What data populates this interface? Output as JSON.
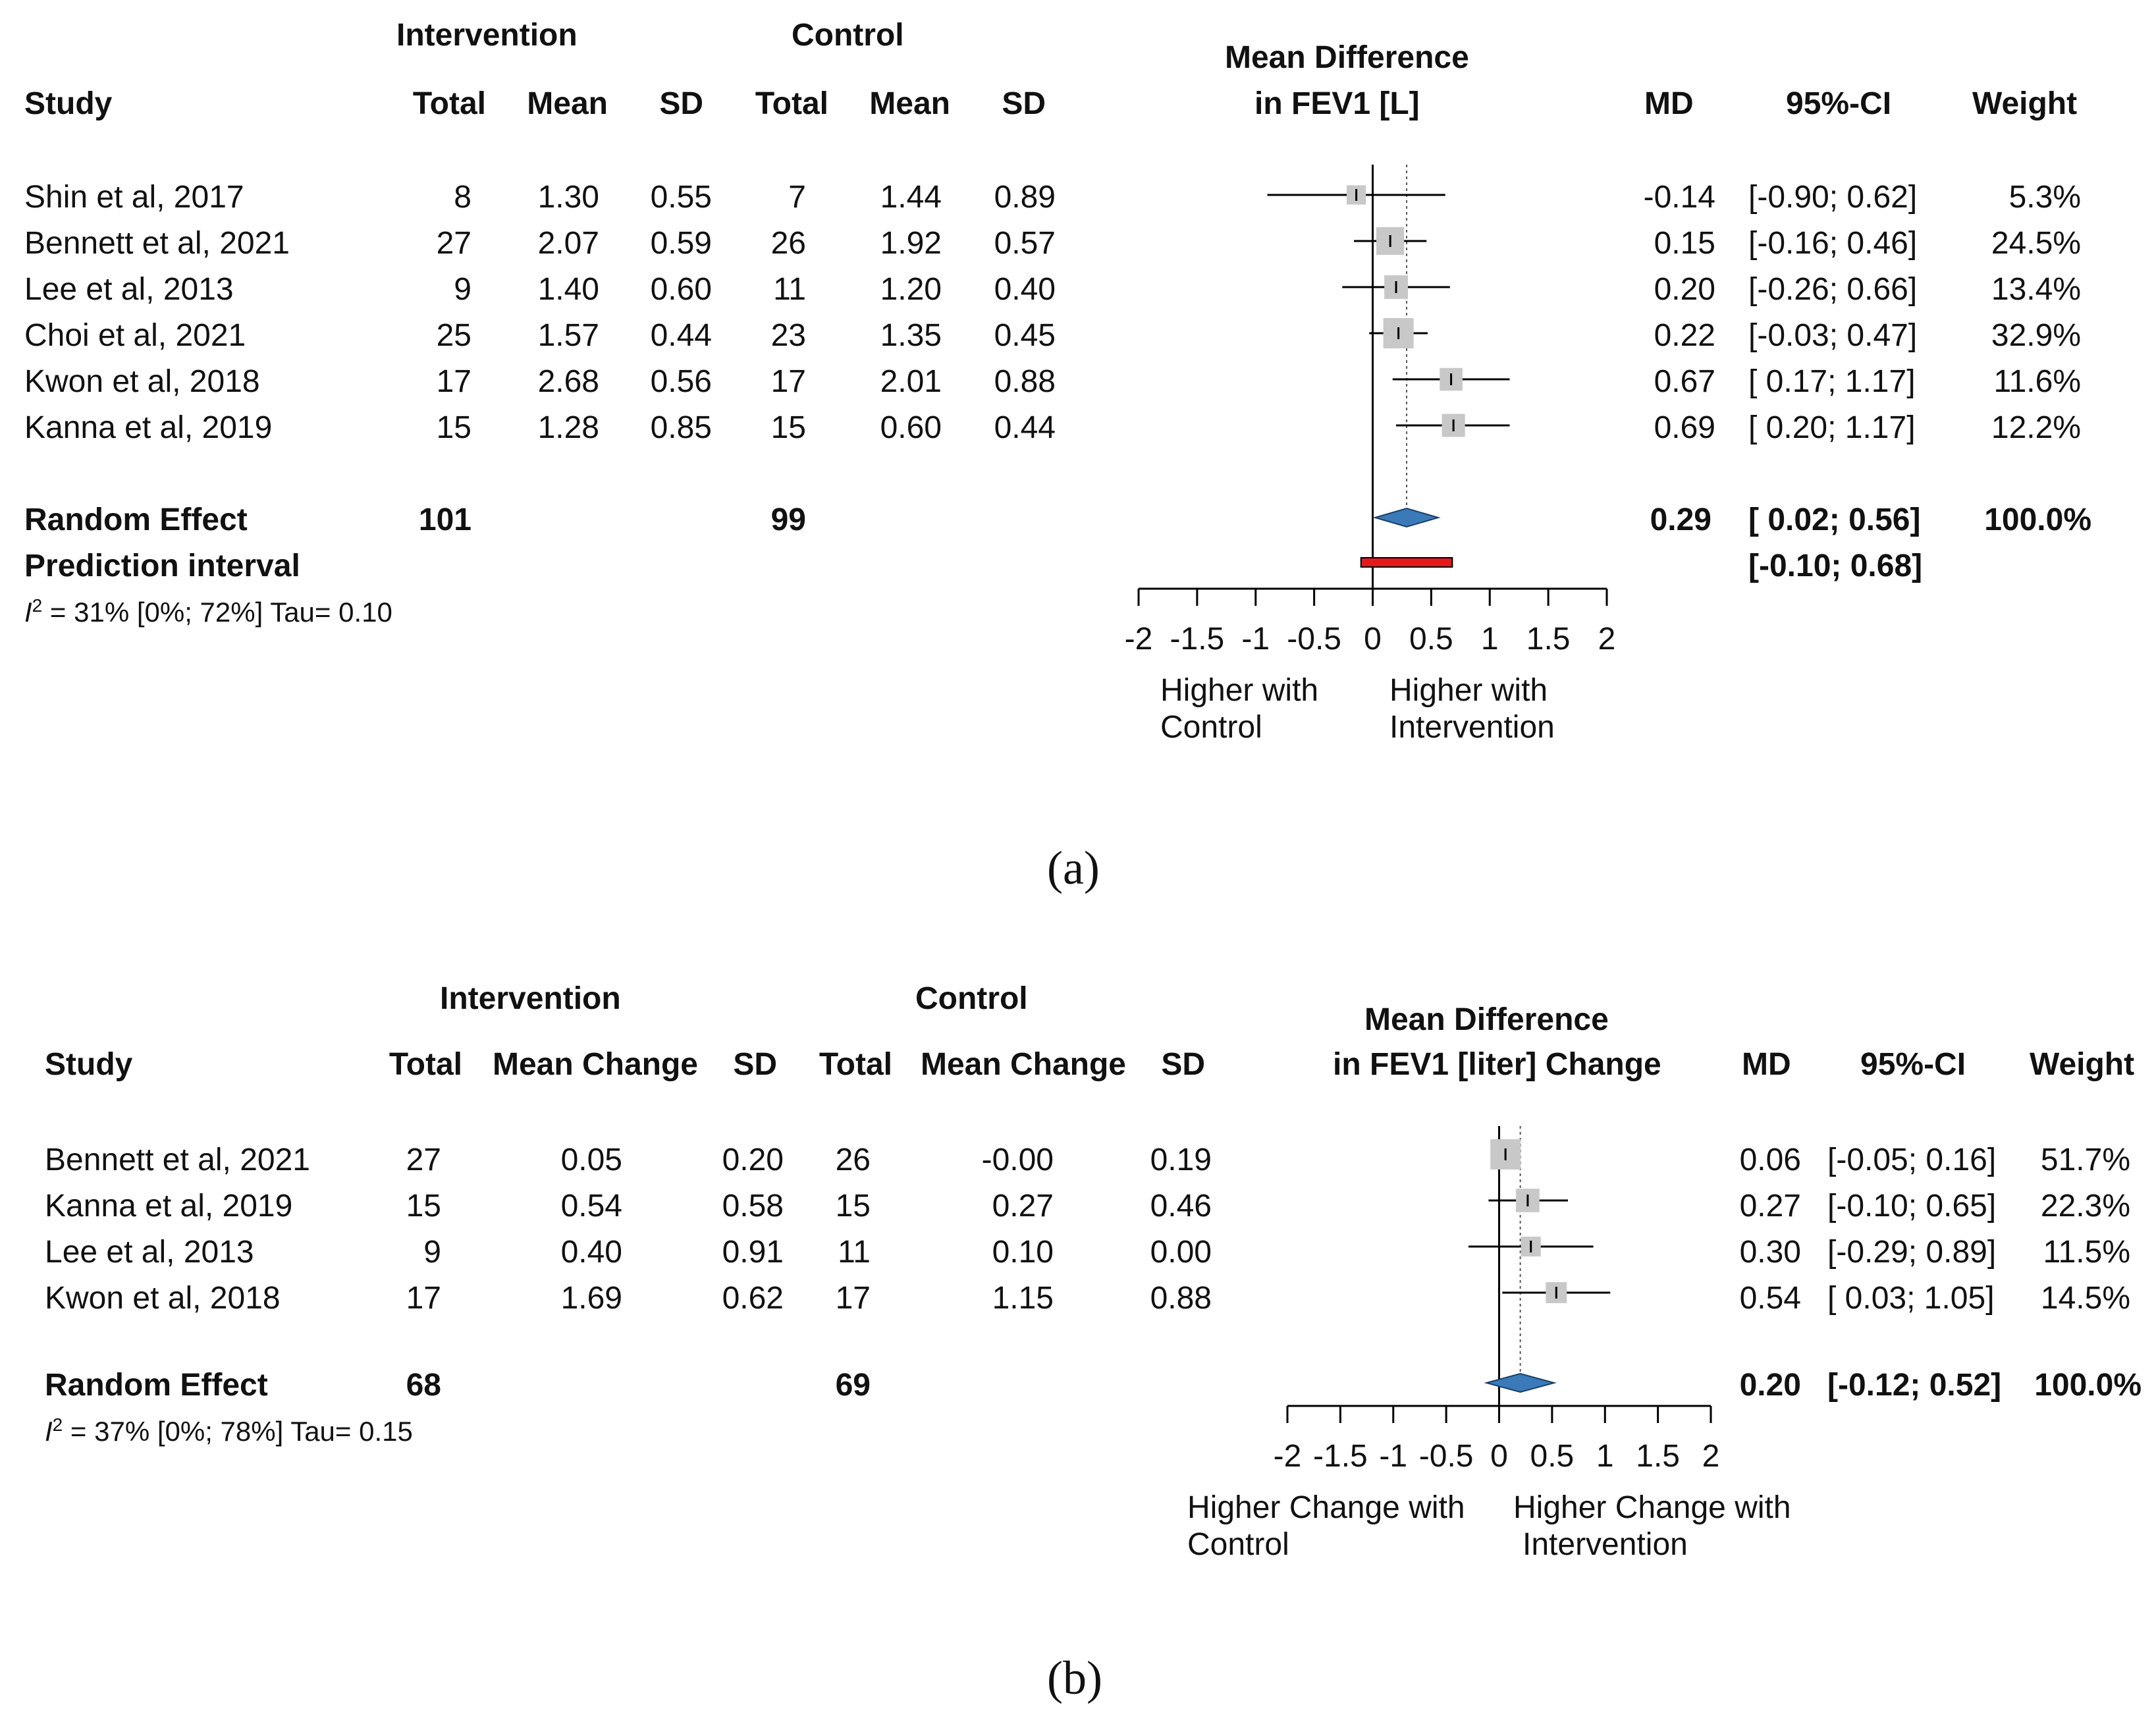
{
  "chart_data": [
    {
      "type": "forest",
      "panel_label": "(a)",
      "headers": {
        "group_intervention": "Intervention",
        "group_control": "Control",
        "study": "Study",
        "total": "Total",
        "mean": "Mean",
        "sd": "SD",
        "plot_title_1": "Mean Difference",
        "plot_title_2": "in FEV1 [L]",
        "md": "MD",
        "ci": "95%-CI",
        "weight": "Weight"
      },
      "studies": [
        {
          "study": "Shin et al, 2017",
          "i_total": "8",
          "i_mean": "1.30",
          "i_sd": "0.55",
          "c_total": "7",
          "c_mean": "1.44",
          "c_sd": "0.89",
          "md": -0.14,
          "md_text": "-0.14",
          "lower": -0.9,
          "upper": 0.62,
          "ci_text": "[-0.90; 0.62]",
          "weight": 5.3,
          "weight_text": "5.3%"
        },
        {
          "study": "Bennett et al, 2021",
          "i_total": "27",
          "i_mean": "2.07",
          "i_sd": "0.59",
          "c_total": "26",
          "c_mean": "1.92",
          "c_sd": "0.57",
          "md": 0.15,
          "md_text": "0.15",
          "lower": -0.16,
          "upper": 0.46,
          "ci_text": "[-0.16; 0.46]",
          "weight": 24.5,
          "weight_text": "24.5%"
        },
        {
          "study": "Lee et al, 2013",
          "i_total": "9",
          "i_mean": "1.40",
          "i_sd": "0.60",
          "c_total": "11",
          "c_mean": "1.20",
          "c_sd": "0.40",
          "md": 0.2,
          "md_text": "0.20",
          "lower": -0.26,
          "upper": 0.66,
          "ci_text": "[-0.26; 0.66]",
          "weight": 13.4,
          "weight_text": "13.4%"
        },
        {
          "study": "Choi et al, 2021",
          "i_total": "25",
          "i_mean": "1.57",
          "i_sd": "0.44",
          "c_total": "23",
          "c_mean": "1.35",
          "c_sd": "0.45",
          "md": 0.22,
          "md_text": "0.22",
          "lower": -0.03,
          "upper": 0.47,
          "ci_text": "[-0.03; 0.47]",
          "weight": 32.9,
          "weight_text": "32.9%"
        },
        {
          "study": "Kwon et al, 2018",
          "i_total": "17",
          "i_mean": "2.68",
          "i_sd": "0.56",
          "c_total": "17",
          "c_mean": "2.01",
          "c_sd": "0.88",
          "md": 0.67,
          "md_text": "0.67",
          "lower": 0.17,
          "upper": 1.17,
          "ci_text": "[ 0.17; 1.17]",
          "weight": 11.6,
          "weight_text": "11.6%"
        },
        {
          "study": "Kanna et al, 2019",
          "i_total": "15",
          "i_mean": "1.28",
          "i_sd": "0.85",
          "c_total": "15",
          "c_mean": "0.60",
          "c_sd": "0.44",
          "md": 0.69,
          "md_text": "0.69",
          "lower": 0.2,
          "upper": 1.17,
          "ci_text": "[ 0.20; 1.17]",
          "weight": 12.2,
          "weight_text": "12.2%"
        }
      ],
      "summary": {
        "label": "Random Effect",
        "i_total": "101",
        "c_total": "99",
        "md": 0.29,
        "md_text": "0.29",
        "lower": 0.02,
        "upper": 0.56,
        "ci_text": "[ 0.02; 0.56]",
        "weight_text": "100.0%"
      },
      "prediction": {
        "label": "Prediction interval",
        "lower": -0.1,
        "upper": 0.68,
        "ci_text": "[-0.10; 0.68]"
      },
      "heterogeneity": {
        "i2_symbol": "I",
        "i2_sup": "2",
        "text": " = 31% [0%; 72%]  Tau= 0.10"
      },
      "xaxis": {
        "min": -2,
        "max": 2,
        "ticks": [
          -2,
          -1.5,
          -1,
          -0.5,
          0,
          0.5,
          1,
          1.5,
          2
        ],
        "tick_labels": [
          "-2",
          "-1.5",
          "-1",
          "-0.5",
          "0",
          "0.5",
          "1",
          "1.5",
          "2"
        ]
      },
      "favours": {
        "left": [
          "Higher with",
          "Control"
        ],
        "right": [
          "Higher with",
          "Intervention"
        ]
      },
      "colors": {
        "box": "#c8c8c8",
        "line": "#000000",
        "diamond": "#3a7ab8",
        "prediction": "#e3191c"
      }
    },
    {
      "type": "forest",
      "panel_label": "(b)",
      "headers": {
        "group_intervention": "Intervention",
        "group_control": "Control",
        "study": "Study",
        "total": "Total",
        "mean": "Mean Change",
        "sd": "SD",
        "plot_title_1": "Mean Difference",
        "plot_title_2": "in FEV1 [liter] Change",
        "md": "MD",
        "ci": "95%-CI",
        "weight": "Weight"
      },
      "studies": [
        {
          "study": "Bennett et al, 2021",
          "i_total": "27",
          "i_mean": "0.05",
          "i_sd": "0.20",
          "c_total": "26",
          "c_mean": "-0.00",
          "c_sd": "0.19",
          "md": 0.06,
          "md_text": "0.06",
          "lower": -0.05,
          "upper": 0.16,
          "ci_text": "[-0.05; 0.16]",
          "weight": 51.7,
          "weight_text": "51.7%"
        },
        {
          "study": "Kanna et al, 2019",
          "i_total": "15",
          "i_mean": "0.54",
          "i_sd": "0.58",
          "c_total": "15",
          "c_mean": "0.27",
          "c_sd": "0.46",
          "md": 0.27,
          "md_text": "0.27",
          "lower": -0.1,
          "upper": 0.65,
          "ci_text": "[-0.10; 0.65]",
          "weight": 22.3,
          "weight_text": "22.3%"
        },
        {
          "study": "Lee et al, 2013",
          "i_total": "9",
          "i_mean": "0.40",
          "i_sd": "0.91",
          "c_total": "11",
          "c_mean": "0.10",
          "c_sd": "0.00",
          "md": 0.3,
          "md_text": "0.30",
          "lower": -0.29,
          "upper": 0.89,
          "ci_text": "[-0.29; 0.89]",
          "weight": 11.5,
          "weight_text": "11.5%"
        },
        {
          "study": "Kwon et al, 2018",
          "i_total": "17",
          "i_mean": "1.69",
          "i_sd": "0.62",
          "c_total": "17",
          "c_mean": "1.15",
          "c_sd": "0.88",
          "md": 0.54,
          "md_text": "0.54",
          "lower": 0.03,
          "upper": 1.05,
          "ci_text": "[ 0.03; 1.05]",
          "weight": 14.5,
          "weight_text": "14.5%"
        }
      ],
      "summary": {
        "label": "Random Effect",
        "i_total": "68",
        "c_total": "69",
        "md": 0.2,
        "md_text": "0.20",
        "lower": -0.12,
        "upper": 0.52,
        "ci_text": "[-0.12; 0.52]",
        "weight_text": "100.0%"
      },
      "heterogeneity": {
        "i2_symbol": "I",
        "i2_sup": "2",
        "text": " = 37% [0%; 78%]   Tau= 0.15"
      },
      "xaxis": {
        "min": -2,
        "max": 2,
        "ticks": [
          -2,
          -1.5,
          -1,
          -0.5,
          0,
          0.5,
          1,
          1.5,
          2
        ],
        "tick_labels": [
          "-2",
          "-1.5",
          "-1",
          "-0.5",
          "0",
          "0.5",
          "1",
          "1.5",
          "2"
        ]
      },
      "favours": {
        "left": [
          "Higher Change with",
          "Control"
        ],
        "right": [
          "Higher Change with",
          "Intervention"
        ]
      },
      "colors": {
        "box": "#c8c8c8",
        "line": "#000000",
        "diamond": "#3a7ab8"
      }
    }
  ]
}
